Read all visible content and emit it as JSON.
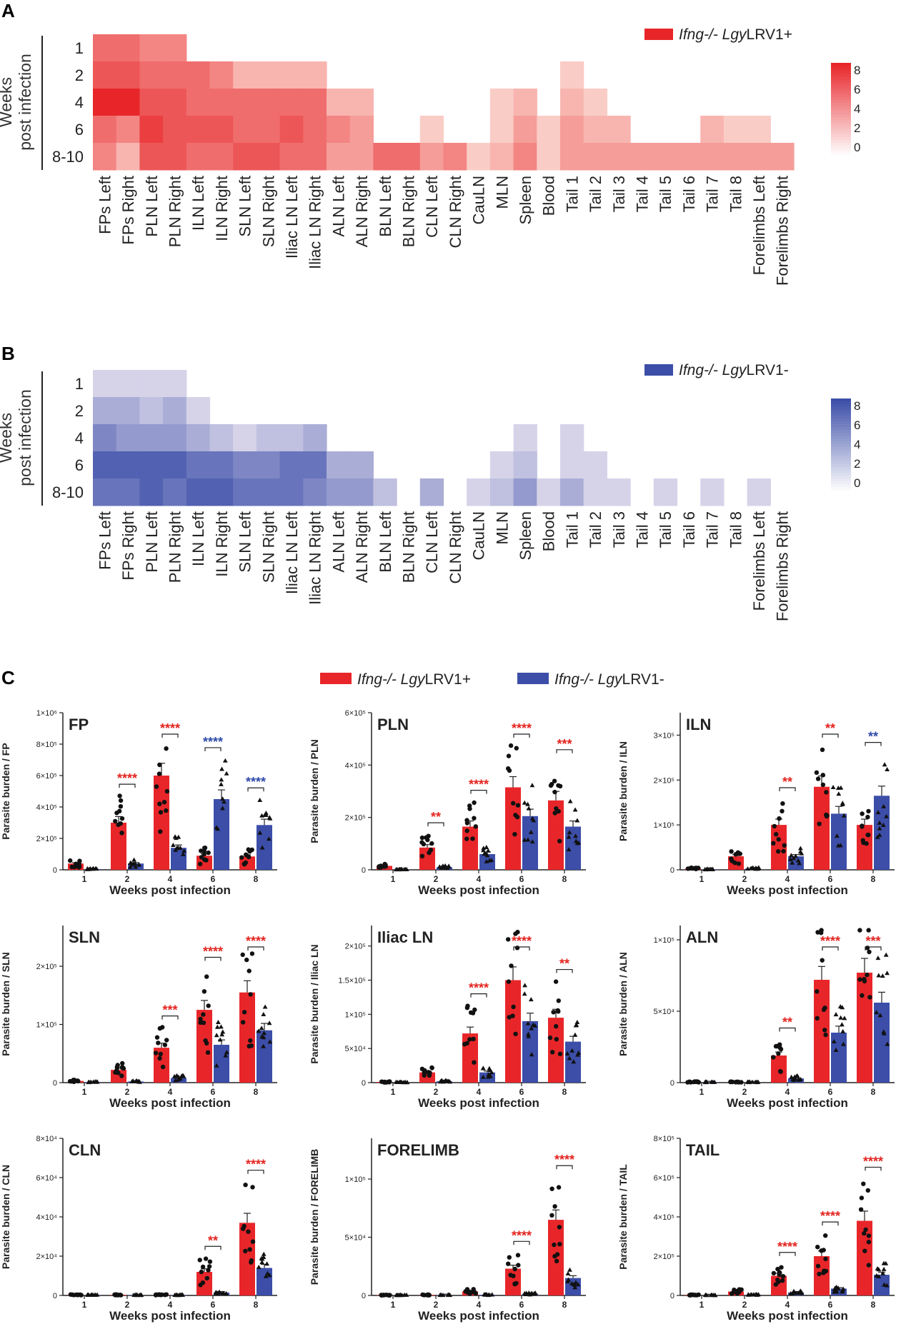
{
  "figure": {
    "panel_labels": [
      "A",
      "B",
      "C"
    ]
  },
  "colors": {
    "red": "#e8262a",
    "red_light": "#fde4dc",
    "blue": "#3c4ea8",
    "blue_light": "#ece6f2",
    "stat_red": "#e3241f",
    "stat_blue": "#2e4aa8",
    "text": "#222222"
  },
  "heatmap_common": {
    "ylabel_line1": "Weeks",
    "ylabel_line2": "post infection",
    "row_labels": [
      "1",
      "2",
      "4",
      "6",
      "8-10"
    ],
    "column_labels": [
      "FPs Left",
      "FPs Right",
      "PLN Left",
      "PLN Right",
      "ILN  Left",
      "ILN  Right",
      "SLN  Left",
      "SLN  Right",
      "Iliac LN Left",
      "Iliac LN Right",
      "ALN Left",
      "ALN Right",
      "BLN Left",
      "BLN Right",
      "CLN Left",
      "CLN Right",
      "CauLN",
      "MLN",
      "Spleen",
      "Blood",
      "Tail 1",
      "Tail 2",
      "Tail 3",
      "Tail 4",
      "Tail 5",
      "Tail 6",
      "Tail 7",
      "Tail 8",
      "Forelimbs Left",
      "Forelimbs Right"
    ],
    "colorbar_ticks": [
      "8",
      "6",
      "4",
      "2",
      "0"
    ],
    "colorbar_range": [
      0,
      8
    ]
  },
  "chart_data": [
    {
      "type": "heatmap",
      "panel": "A",
      "legend": {
        "italic": "Ifng-/- Lgy",
        "plain": "LRV1+"
      },
      "color_scale": "red",
      "values": [
        [
          5,
          5,
          4,
          4,
          null,
          null,
          null,
          null,
          null,
          null,
          null,
          null,
          null,
          null,
          null,
          null,
          null,
          null,
          null,
          null,
          null,
          null,
          null,
          null,
          null,
          null,
          null,
          null,
          null,
          null
        ],
        [
          6,
          6,
          5,
          5,
          5,
          4,
          2,
          2,
          2,
          2,
          null,
          null,
          null,
          null,
          null,
          null,
          null,
          null,
          null,
          null,
          1,
          null,
          null,
          null,
          null,
          null,
          null,
          null,
          null,
          null
        ],
        [
          8,
          8,
          6,
          6,
          5,
          5,
          5,
          5,
          5,
          5,
          2,
          2,
          null,
          null,
          null,
          null,
          null,
          1,
          2,
          null,
          2,
          1,
          null,
          null,
          null,
          null,
          null,
          null,
          null,
          null
        ],
        [
          5,
          4,
          7,
          6,
          6,
          6,
          5,
          5,
          6,
          5,
          4,
          3,
          null,
          null,
          1,
          null,
          null,
          1,
          3,
          1,
          3,
          2,
          2,
          null,
          null,
          null,
          2,
          1,
          1,
          null
        ],
        [
          4,
          2,
          6,
          6,
          5,
          5,
          6,
          6,
          5,
          5,
          3,
          3,
          5,
          5,
          3,
          4,
          1,
          2,
          4,
          1,
          3,
          3,
          3,
          3,
          3,
          3,
          3,
          3,
          3,
          3
        ]
      ]
    },
    {
      "type": "heatmap",
      "panel": "B",
      "legend": {
        "italic": "Ifng-/- Lgy",
        "plain": "LRV1-"
      },
      "color_scale": "blue",
      "values": [
        [
          1,
          1,
          1,
          1,
          null,
          null,
          null,
          null,
          null,
          null,
          null,
          null,
          null,
          null,
          null,
          null,
          null,
          null,
          null,
          null,
          null,
          null,
          null,
          null,
          null,
          null,
          null,
          null,
          null,
          null
        ],
        [
          3,
          3,
          2,
          3,
          1,
          null,
          null,
          null,
          null,
          null,
          null,
          null,
          null,
          null,
          null,
          null,
          null,
          null,
          null,
          null,
          null,
          null,
          null,
          null,
          null,
          null,
          null,
          null,
          null,
          null
        ],
        [
          5,
          4,
          4,
          4,
          3,
          2,
          1,
          2,
          2,
          3,
          null,
          null,
          null,
          null,
          null,
          null,
          null,
          null,
          1,
          null,
          1,
          null,
          null,
          null,
          null,
          null,
          null,
          null,
          null,
          null
        ],
        [
          7,
          7,
          7,
          7,
          6,
          6,
          5,
          5,
          6,
          6,
          3,
          3,
          null,
          null,
          null,
          null,
          null,
          1,
          2,
          null,
          1,
          1,
          null,
          null,
          null,
          null,
          null,
          null,
          null,
          null
        ],
        [
          6,
          6,
          7,
          6,
          7,
          7,
          6,
          6,
          6,
          5,
          4,
          4,
          2,
          null,
          3,
          null,
          1,
          2,
          4,
          1,
          3,
          1,
          1,
          null,
          1,
          null,
          1,
          null,
          1,
          null
        ]
      ]
    }
  ],
  "barcharts": {
    "panel": "C",
    "type": "bar",
    "legend": [
      {
        "italic": "Ifng-/- Lgy",
        "plain": "LRV1+",
        "color_key": "red"
      },
      {
        "italic": "Ifng-/- Lgy",
        "plain": "LRV1-",
        "color_key": "blue"
      }
    ],
    "xlabel": "Weeks post infection",
    "categories": [
      "1",
      "2",
      "4",
      "6",
      "8"
    ],
    "subplots": [
      {
        "title": "FP",
        "ylabel": "Parasite burden / FP",
        "ylim": [
          0,
          1000000
        ],
        "yticks": [
          "0",
          "2×10⁵",
          "4×10⁵",
          "6×10⁵",
          "8×10⁵",
          "1×10⁶"
        ],
        "ytick_values": [
          0,
          200000,
          400000,
          600000,
          800000,
          1000000
        ],
        "series": [
          {
            "name": "LRV1+",
            "values": [
              40000,
              300000,
              600000,
              90000,
              85000
            ]
          },
          {
            "name": "LRV1-",
            "values": [
              5000,
              40000,
              140000,
              450000,
              285000
            ]
          }
        ],
        "significance": [
          {
            "category": "2",
            "label": "****",
            "color": "red"
          },
          {
            "category": "4",
            "label": "****",
            "color": "red"
          },
          {
            "category": "6",
            "label": "****",
            "color": "blue"
          },
          {
            "category": "8",
            "label": "****",
            "color": "blue"
          }
        ]
      },
      {
        "title": "PLN",
        "ylabel": "Parasite burden / PLN",
        "ylim": [
          0,
          600000
        ],
        "yticks": [
          "0",
          "2×10⁵",
          "4×10⁵",
          "6×10⁵"
        ],
        "ytick_values": [
          0,
          200000,
          400000,
          600000
        ],
        "series": [
          {
            "name": "LRV1+",
            "values": [
              15000,
              85000,
              165000,
              315000,
              265000
            ]
          },
          {
            "name": "LRV1-",
            "values": [
              2000,
              10000,
              60000,
              205000,
              165000
            ]
          }
        ],
        "significance": [
          {
            "category": "2",
            "label": "**",
            "color": "red"
          },
          {
            "category": "4",
            "label": "****",
            "color": "red"
          },
          {
            "category": "6",
            "label": "****",
            "color": "red"
          },
          {
            "category": "8",
            "label": "***",
            "color": "red"
          }
        ]
      },
      {
        "title": "ILN",
        "ylabel": "Parasite burden / ILN",
        "ylim": [
          0,
          350000
        ],
        "yticks": [
          "0",
          "1×10⁵",
          "2×10⁵",
          "3×10⁵"
        ],
        "ytick_values": [
          0,
          100000,
          200000,
          300000
        ],
        "series": [
          {
            "name": "LRV1+",
            "values": [
              3000,
              30000,
              100000,
              185000,
              100000
            ]
          },
          {
            "name": "LRV1-",
            "values": [
              1000,
              3000,
              30000,
              125000,
              165000
            ]
          }
        ],
        "significance": [
          {
            "category": "4",
            "label": "**",
            "color": "red"
          },
          {
            "category": "6",
            "label": "**",
            "color": "red"
          },
          {
            "category": "8",
            "label": "**",
            "color": "blue"
          }
        ]
      },
      {
        "title": "SLN",
        "ylabel": "Parasite burden / SLN",
        "ylim": [
          0,
          270000
        ],
        "yticks": [
          "0",
          "1×10⁵",
          "2×10⁵"
        ],
        "ytick_values": [
          0,
          100000,
          200000
        ],
        "series": [
          {
            "name": "LRV1+",
            "values": [
              3000,
              22000,
              60000,
              125000,
              155000
            ]
          },
          {
            "name": "LRV1-",
            "values": [
              1000,
              2000,
              8000,
              65000,
              90000
            ]
          }
        ],
        "significance": [
          {
            "category": "4",
            "label": "***",
            "color": "red"
          },
          {
            "category": "6",
            "label": "****",
            "color": "red"
          },
          {
            "category": "8",
            "label": "****",
            "color": "red"
          }
        ]
      },
      {
        "title": "Iliac LN",
        "ylabel": "Parasite burden / Iliac LN",
        "ylim": [
          0,
          230000
        ],
        "yticks": [
          "0",
          "5×10⁴",
          "1×10⁵",
          "1.5×10⁵",
          "2×10⁵"
        ],
        "ytick_values": [
          0,
          50000,
          100000,
          150000,
          200000
        ],
        "series": [
          {
            "name": "LRV1+",
            "values": [
              1000,
              15000,
              72000,
              150000,
              95000
            ]
          },
          {
            "name": "LRV1-",
            "values": [
              500,
              2000,
              15000,
              90000,
              60000
            ]
          }
        ],
        "significance": [
          {
            "category": "4",
            "label": "****",
            "color": "red"
          },
          {
            "category": "6",
            "label": "****",
            "color": "red"
          },
          {
            "category": "8",
            "label": "**",
            "color": "red"
          }
        ]
      },
      {
        "title": "ALN",
        "ylabel": "Parasite burden / ALN",
        "ylim": [
          0,
          110000
        ],
        "yticks": [
          "0",
          "5×10⁴",
          "1×10⁵"
        ],
        "ytick_values": [
          0,
          50000,
          100000
        ],
        "series": [
          {
            "name": "LRV1+",
            "values": [
              500,
              500,
              19000,
              72000,
              77000
            ]
          },
          {
            "name": "LRV1-",
            "values": [
              300,
              300,
              3000,
              35000,
              56000
            ]
          }
        ],
        "significance": [
          {
            "category": "4",
            "label": "**",
            "color": "red"
          },
          {
            "category": "6",
            "label": "****",
            "color": "red"
          },
          {
            "category": "8",
            "label": "***",
            "color": "red"
          }
        ]
      },
      {
        "title": "CLN",
        "ylabel": "Parasite burden / CLN",
        "ylim": [
          0,
          80000
        ],
        "yticks": [
          "0",
          "2×10⁴",
          "4×10⁴",
          "6×10⁴",
          "8×10⁴"
        ],
        "ytick_values": [
          0,
          20000,
          40000,
          60000,
          80000
        ],
        "series": [
          {
            "name": "LRV1+",
            "values": [
              300,
              300,
              300,
              12000,
              37000
            ]
          },
          {
            "name": "LRV1-",
            "values": [
              200,
              200,
              200,
              1500,
              14000
            ]
          }
        ],
        "significance": [
          {
            "category": "6",
            "label": "**",
            "color": "red"
          },
          {
            "category": "8",
            "label": "****",
            "color": "red"
          }
        ]
      },
      {
        "title": "FORELIMB",
        "ylabel": "Parasite burden / FORELIMB",
        "ylim": [
          0,
          135000
        ],
        "yticks": [
          "0",
          "5×10⁴",
          "1×10⁵"
        ],
        "ytick_values": [
          0,
          50000,
          100000
        ],
        "series": [
          {
            "name": "LRV1+",
            "values": [
              300,
              500,
              3500,
              23000,
              65000
            ]
          },
          {
            "name": "LRV1-",
            "values": [
              200,
              300,
              500,
              1500,
              15000
            ]
          }
        ],
        "significance": [
          {
            "category": "6",
            "label": "****",
            "color": "red"
          },
          {
            "category": "8",
            "label": "****",
            "color": "red"
          }
        ]
      },
      {
        "title": "TAIL",
        "ylabel": "Parasite burden / TAIL",
        "ylim": [
          0,
          800000
        ],
        "yticks": [
          "0",
          "2×10⁵",
          "4×10⁵",
          "6×10⁵",
          "8×10⁵"
        ],
        "ytick_values": [
          0,
          200000,
          400000,
          600000,
          800000
        ],
        "series": [
          {
            "name": "LRV1+",
            "values": [
              3000,
              20000,
              100000,
              200000,
              380000
            ]
          },
          {
            "name": "LRV1-",
            "values": [
              1000,
              3000,
              15000,
              35000,
              105000
            ]
          }
        ],
        "significance": [
          {
            "category": "4",
            "label": "****",
            "color": "red"
          },
          {
            "category": "6",
            "label": "****",
            "color": "red"
          },
          {
            "category": "8",
            "label": "****",
            "color": "red"
          }
        ]
      }
    ]
  }
}
